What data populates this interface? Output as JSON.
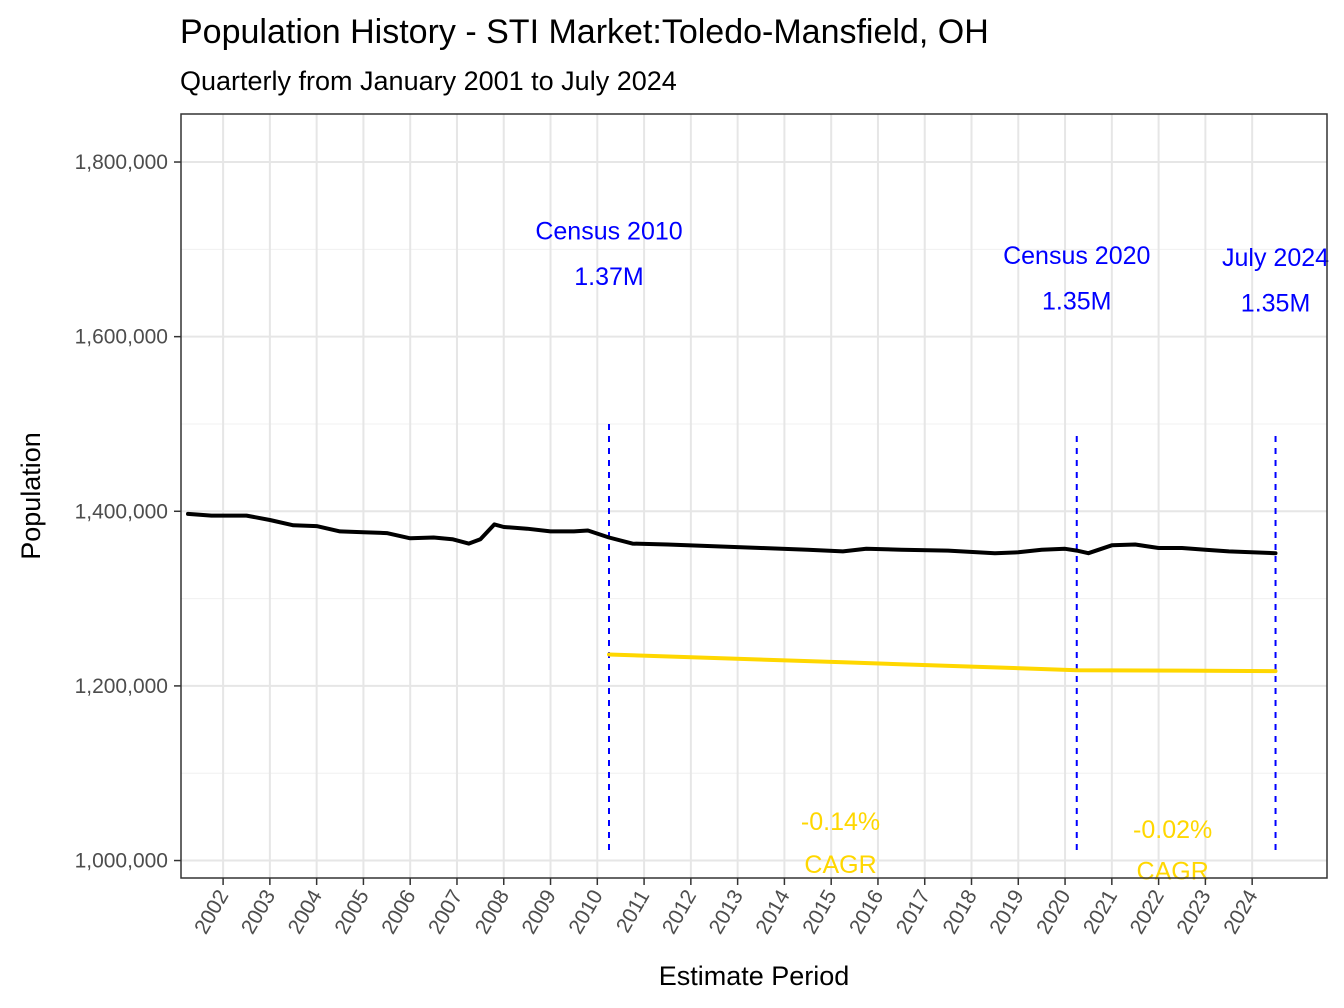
{
  "chart_data": {
    "type": "line",
    "title": "Population History - STI Market:Toledo-Mansfield, OH",
    "subtitle": "Quarterly from January 2001 to July 2024",
    "xlabel": "Estimate Period",
    "ylabel": "Population",
    "xlim": [
      2001.1,
      2025.6
    ],
    "ylim": [
      980000,
      1855000
    ],
    "y_ticks": [
      1000000,
      1200000,
      1400000,
      1600000,
      1800000
    ],
    "y_tick_labels": [
      "1,000,000",
      "1,200,000",
      "1,400,000",
      "1,600,000",
      "1,800,000"
    ],
    "x_ticks": [
      2002,
      2003,
      2004,
      2005,
      2006,
      2007,
      2008,
      2009,
      2010,
      2011,
      2012,
      2013,
      2014,
      2015,
      2016,
      2017,
      2018,
      2019,
      2020,
      2021,
      2022,
      2023,
      2024
    ],
    "x_tick_labels": [
      "2002",
      "2003",
      "2004",
      "2005",
      "2006",
      "2007",
      "2008",
      "2009",
      "2010",
      "2011",
      "2012",
      "2013",
      "2014",
      "2015",
      "2016",
      "2017",
      "2018",
      "2019",
      "2020",
      "2021",
      "2022",
      "2023",
      "2024"
    ],
    "series": [
      {
        "name": "Population",
        "color": "#000000",
        "x": [
          2001.25,
          2001.75,
          2002.5,
          2003.0,
          2003.5,
          2004.0,
          2004.5,
          2005.0,
          2005.5,
          2006.0,
          2006.5,
          2006.9,
          2007.25,
          2007.5,
          2007.8,
          2008.0,
          2008.5,
          2009.0,
          2009.5,
          2009.8,
          2010.25,
          2010.75,
          2011.5,
          2012.5,
          2013.5,
          2014.5,
          2015.25,
          2015.75,
          2016.5,
          2017.5,
          2018.5,
          2019.0,
          2019.5,
          2020.0,
          2020.25,
          2020.5,
          2021.0,
          2021.5,
          2022.0,
          2022.5,
          2023.0,
          2023.5,
          2024.5
        ],
        "values": [
          1397000,
          1395000,
          1395000,
          1390000,
          1384000,
          1383000,
          1377000,
          1376000,
          1375000,
          1369000,
          1370000,
          1368000,
          1363000,
          1368000,
          1385000,
          1382000,
          1380000,
          1377000,
          1377000,
          1378000,
          1370000,
          1363000,
          1362000,
          1360000,
          1358000,
          1356000,
          1354000,
          1357000,
          1356000,
          1355000,
          1352000,
          1353000,
          1356000,
          1357000,
          1355000,
          1352000,
          1361000,
          1362000,
          1358000,
          1358000,
          1356000,
          1354000,
          1352000
        ]
      },
      {
        "name": "CAGR trend",
        "color": "#ffd700",
        "x": [
          2010.25,
          2015.25,
          2020.25,
          2022.5,
          2024.5
        ],
        "values": [
          1236000,
          1227000,
          1218000,
          1217500,
          1217000
        ]
      }
    ],
    "reference_lines": [
      {
        "x": 2010.25,
        "from": 1012000,
        "to": 1506000,
        "color": "#0000ff",
        "label": "Census 2010",
        "value_label": "1.37M"
      },
      {
        "x": 2020.25,
        "from": 1012000,
        "to": 1488000,
        "color": "#0000ff",
        "label": "Census 2020",
        "value_label": "1.35M"
      },
      {
        "x": 2024.5,
        "from": 1012000,
        "to": 1488000,
        "color": "#0000ff",
        "label": "July 2024",
        "value_label": "1.35M"
      }
    ],
    "annotations": [
      {
        "id": "census-2010-label",
        "text": "Census 2010",
        "x": 2010.25,
        "y": 1711000,
        "class": "ann"
      },
      {
        "id": "census-2010-value",
        "text": "1.37M",
        "x": 2010.25,
        "y": 1659000,
        "class": "ann"
      },
      {
        "id": "census-2020-label",
        "text": "Census 2020",
        "x": 2020.25,
        "y": 1683000,
        "class": "ann"
      },
      {
        "id": "census-2020-value",
        "text": "1.35M",
        "x": 2020.25,
        "y": 1631000,
        "class": "ann"
      },
      {
        "id": "july-2024-label",
        "text": "July 2024",
        "x": 2024.5,
        "y": 1681000,
        "class": "ann"
      },
      {
        "id": "july-2024-value",
        "text": "1.35M",
        "x": 2024.5,
        "y": 1629000,
        "class": "ann"
      },
      {
        "id": "cagr-1-value",
        "text": "-0.14%",
        "x": 2015.2,
        "y": 1035000,
        "class": "cagr"
      },
      {
        "id": "cagr-1-label",
        "text": "CAGR",
        "x": 2015.2,
        "y": 986000,
        "class": "cagr"
      },
      {
        "id": "cagr-2-value",
        "text": "-0.02%",
        "x": 2022.3,
        "y": 1026000,
        "class": "cagr"
      },
      {
        "id": "cagr-2-label",
        "text": "CAGR",
        "x": 2022.3,
        "y": 978000,
        "class": "cagr"
      }
    ]
  }
}
